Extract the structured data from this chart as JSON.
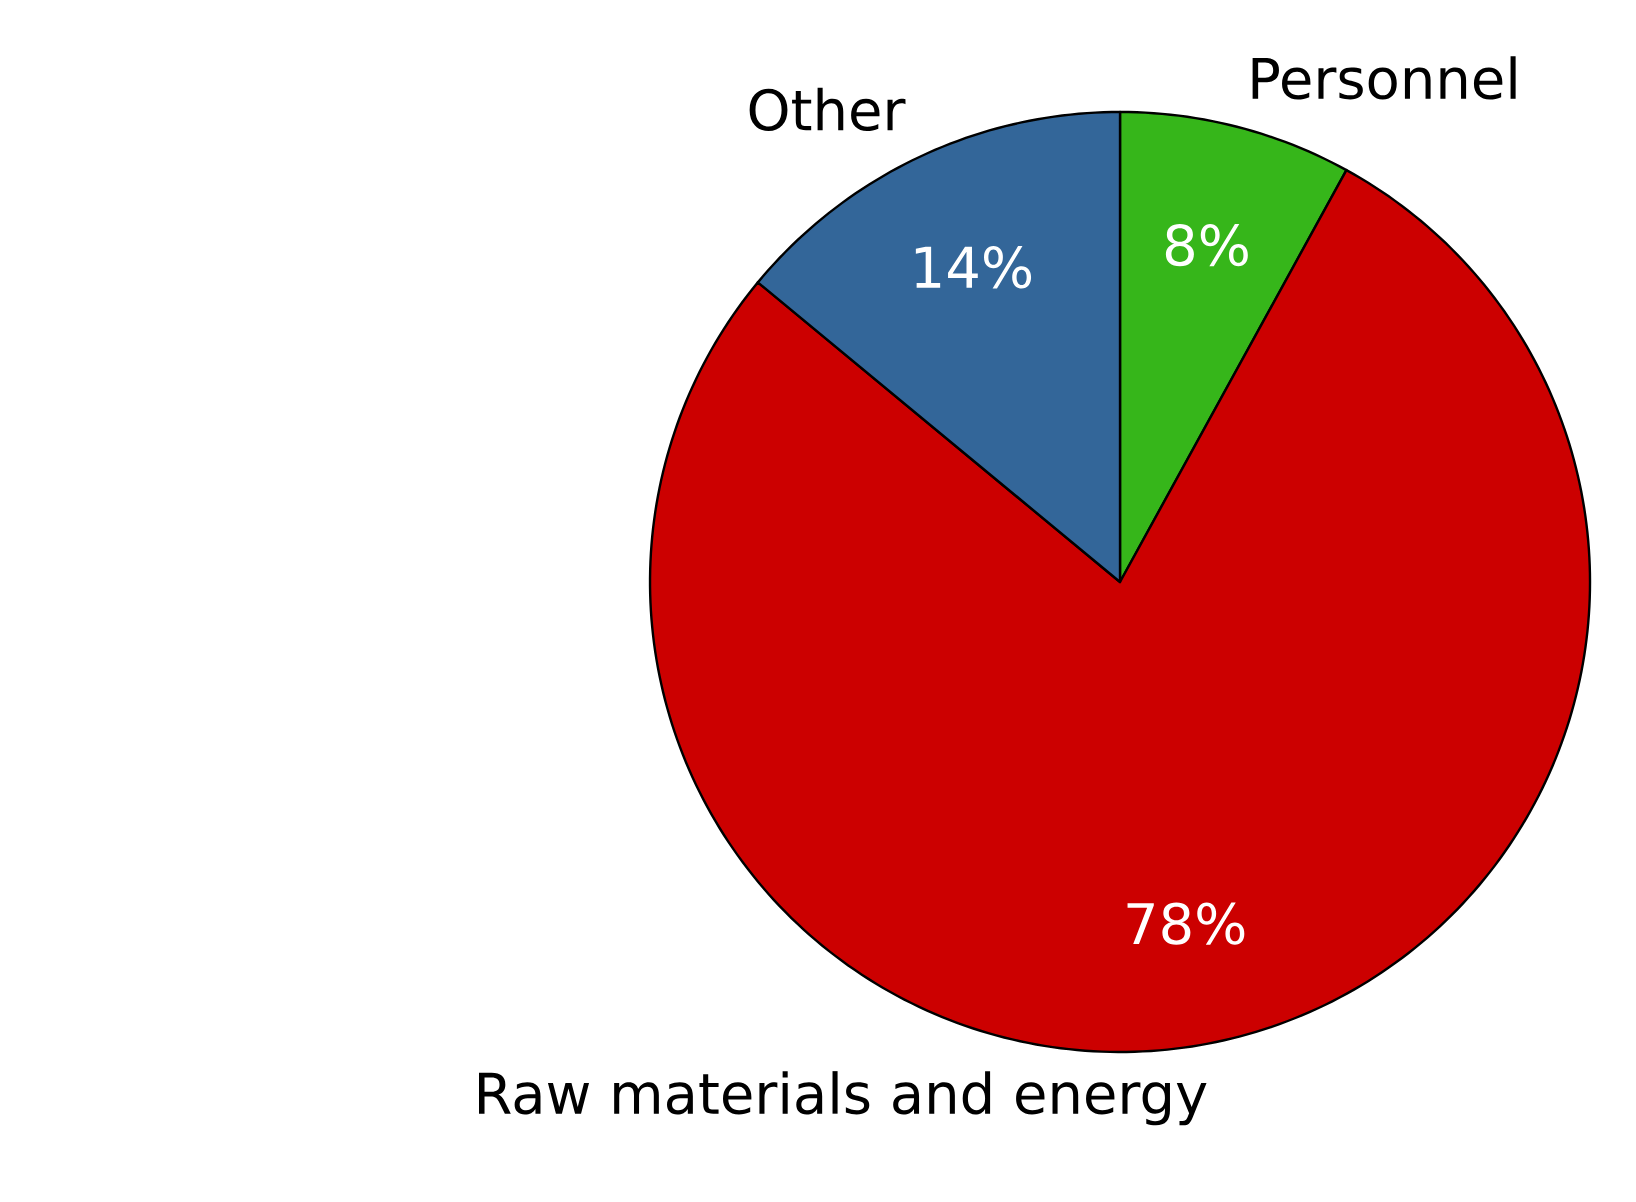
{
  "chart_data": {
    "type": "pie",
    "categories": [
      "Personnel",
      "Raw materials and energy",
      "Other"
    ],
    "values": [
      8,
      78,
      14
    ],
    "colors": [
      "#36b61a",
      "#cc0000",
      "#336699"
    ],
    "value_labels": [
      "8%",
      "78%",
      "14%"
    ]
  }
}
